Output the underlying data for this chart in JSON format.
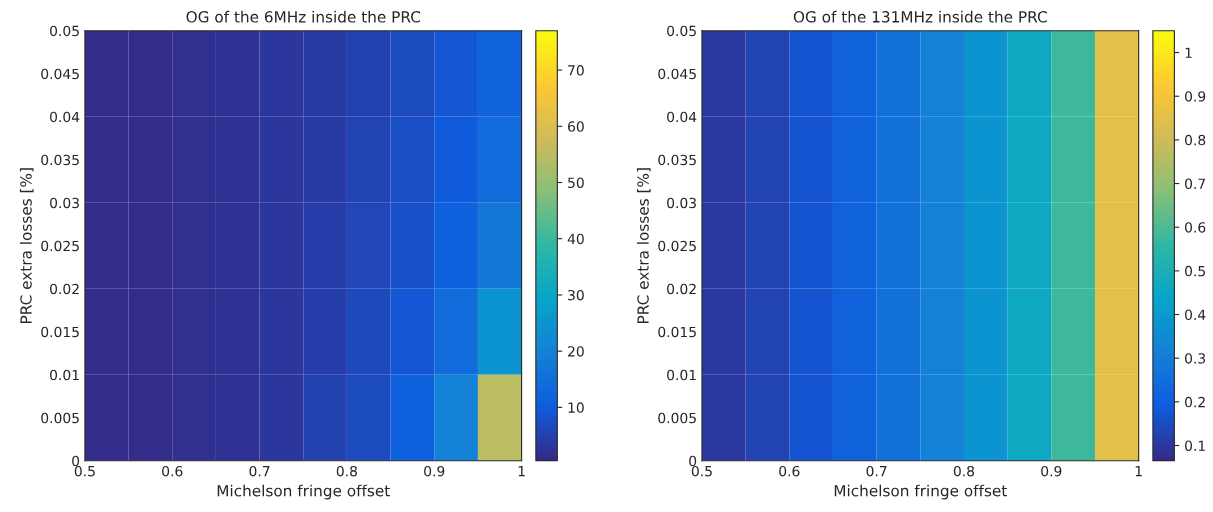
{
  "chart_data": [
    {
      "type": "heatmap",
      "title": "OG of the 6MHz inside the PRC",
      "xlabel": "Michelson fringe offset",
      "ylabel": "PRC extra losses [%]",
      "xlim": [
        0.5,
        1
      ],
      "xticks": [
        0.5,
        0.6,
        0.7,
        0.8,
        0.9,
        1
      ],
      "ylim": [
        0,
        0.05
      ],
      "yticks": [
        0,
        0.005,
        0.01,
        0.015,
        0.02,
        0.025,
        0.03,
        0.035,
        0.04,
        0.045,
        0.05
      ],
      "clim": [
        0.5,
        77
      ],
      "cticks": [
        10,
        20,
        30,
        40,
        50,
        60,
        70
      ],
      "cells": [
        [
          1,
          1,
          1.5,
          2,
          3,
          4,
          5,
          7,
          9,
          12
        ],
        [
          1,
          1,
          1.5,
          2,
          3,
          4,
          5.5,
          7.5,
          10,
          14
        ],
        [
          1,
          1,
          1.5,
          2,
          3,
          4.5,
          6,
          8,
          11,
          17
        ],
        [
          1,
          1,
          1.5,
          2,
          3,
          4.5,
          6.5,
          9,
          14,
          25
        ],
        [
          1,
          1,
          1.5,
          2,
          3,
          5,
          7,
          11,
          20,
          55
        ]
      ]
    },
    {
      "type": "heatmap",
      "title": "OG of the 131MHz inside the PRC",
      "xlabel": "Michelson fringe offset",
      "ylabel": "PRC extra losses [%]",
      "xlim": [
        0.5,
        1
      ],
      "xticks": [
        0.5,
        0.6,
        0.7,
        0.8,
        0.9,
        1
      ],
      "ylim": [
        0,
        0.05
      ],
      "yticks": [
        0,
        0.005,
        0.01,
        0.015,
        0.02,
        0.025,
        0.03,
        0.035,
        0.04,
        0.045,
        0.05
      ],
      "clim": [
        0.065,
        1.05
      ],
      "cticks": [
        0.1,
        0.2,
        0.3,
        0.4,
        0.5,
        0.6,
        0.7,
        0.8,
        0.9,
        1
      ],
      "cells": [
        [
          0.1,
          0.13,
          0.17,
          0.21,
          0.26,
          0.31,
          0.38,
          0.46,
          0.58,
          0.85
        ],
        [
          0.1,
          0.13,
          0.17,
          0.21,
          0.26,
          0.31,
          0.38,
          0.46,
          0.58,
          0.85
        ],
        [
          0.1,
          0.13,
          0.17,
          0.21,
          0.26,
          0.31,
          0.38,
          0.46,
          0.58,
          0.85
        ],
        [
          0.1,
          0.13,
          0.17,
          0.21,
          0.26,
          0.31,
          0.38,
          0.46,
          0.58,
          0.85
        ],
        [
          0.1,
          0.13,
          0.17,
          0.21,
          0.26,
          0.31,
          0.38,
          0.46,
          0.58,
          0.85
        ]
      ]
    }
  ]
}
